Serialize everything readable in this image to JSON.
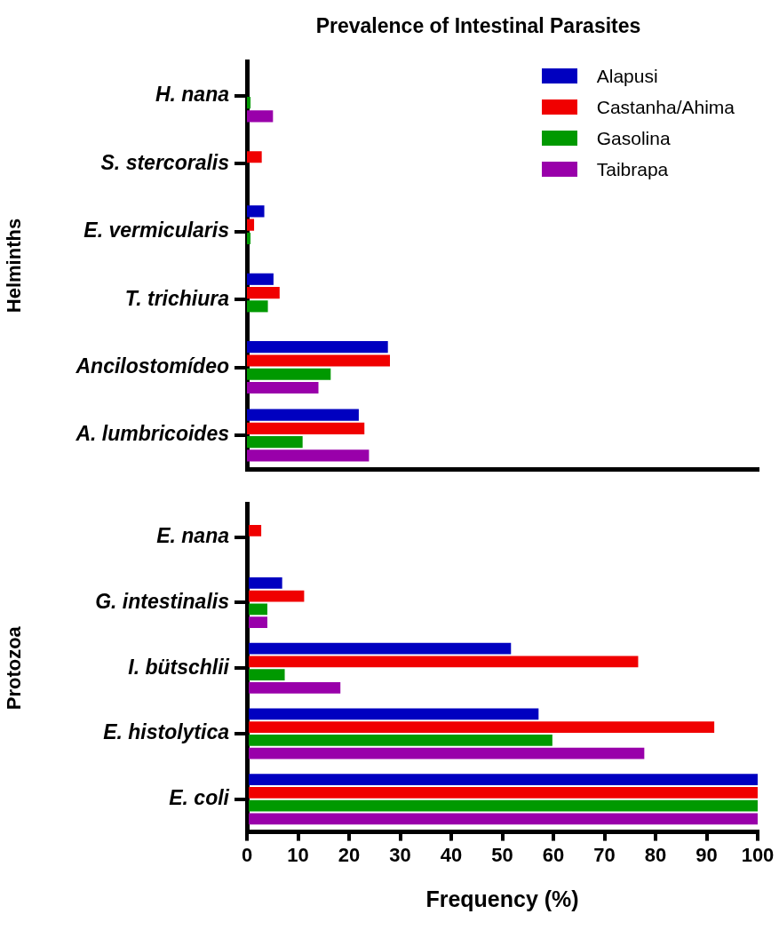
{
  "chart_data": [
    {
      "type": "bar",
      "orientation": "horizontal",
      "title": "Prevalence of Intestinal Parasites",
      "ylabel": "Helminths",
      "categories": [
        "H. nana",
        "S. stercoralis",
        "E. vermicularis",
        "T. trichiura",
        "Ancilostomídeo",
        "A. lumbricoides"
      ],
      "series": [
        {
          "name": "Alapusi",
          "color": "#0000c0",
          "values": [
            null,
            null,
            3.4,
            5.2,
            27.6,
            21.9
          ]
        },
        {
          "name": "Castanha/Ahima",
          "color": "#f00000",
          "values": [
            null,
            2.9,
            1.4,
            6.4,
            28.0,
            23.0
          ]
        },
        {
          "name": "Gasolina",
          "color": "#009900",
          "values": [
            0.7,
            null,
            0.7,
            4.1,
            16.4,
            10.9
          ]
        },
        {
          "name": "Taibrapa",
          "color": "#9900aa",
          "values": [
            5.1,
            null,
            null,
            null,
            14.0,
            23.9
          ]
        }
      ],
      "xlim": [
        0,
        100
      ],
      "tick_labels": "y",
      "grid": false,
      "legend": "top right"
    },
    {
      "type": "bar",
      "orientation": "horizontal",
      "ylabel": "Protozoa",
      "xlabel": "Frequency (%)",
      "categories": [
        "E. nana",
        "G. intestinalis",
        "I. bütschlii",
        "E. histolytica",
        "E. coli"
      ],
      "series": [
        {
          "color": "#0000c0",
          "values": [
            null,
            6.9,
            51.7,
            57.1,
            100
          ]
        },
        {
          "color": "#f00000",
          "values": [
            2.8,
            11.2,
            76.6,
            91.5,
            100
          ]
        },
        {
          "color": "#009900",
          "values": [
            null,
            4.0,
            7.4,
            59.8,
            100
          ]
        },
        {
          "color": "#9900aa",
          "values": [
            null,
            4.0,
            18.3,
            77.8,
            100
          ]
        }
      ],
      "xlim": [
        0,
        100
      ],
      "xticks": [
        0,
        10,
        20,
        30,
        40,
        50,
        60,
        70,
        80,
        90,
        100
      ],
      "grid": false,
      "legend": false
    }
  ]
}
